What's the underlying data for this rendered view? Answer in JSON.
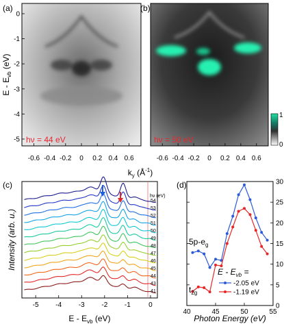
{
  "panels": {
    "a": {
      "letter": "(a)",
      "hv_label": "hν = 44 eV"
    },
    "b": {
      "letter": "(b)",
      "hv_label": "hν = 50 eV"
    },
    "c": {
      "letter": "(c)"
    },
    "d": {
      "letter": "(d)"
    }
  },
  "arpes": {
    "y_axis_label": "E - E",
    "y_axis_sub": "vb",
    "y_axis_unit": " (eV)",
    "x_axis_label": "k",
    "x_axis_sub": "y",
    "x_axis_unit": " (Å",
    "x_axis_unit_sup": "-1",
    "x_axis_unit_end": ")",
    "y_ticks": [
      "0",
      "-1",
      "-2",
      "-3",
      "-4",
      "-5"
    ],
    "x_ticks": [
      "-0.6",
      "-0.4",
      "-0.2",
      "0",
      "0.2",
      "0.4",
      "0.6"
    ],
    "colorbar": {
      "max": "1",
      "min": "0"
    }
  },
  "edc": {
    "y_axis_label": "Intensity (arb. u.)",
    "x_axis_label": "E - E",
    "x_axis_sub": "vb",
    "x_axis_unit": " (eV)",
    "x_ticks": [
      "-5",
      "-4",
      "-3",
      "-2",
      "-1",
      "0"
    ],
    "hv_header": "hν (eV)",
    "curve_labels": [
      "54",
      "53",
      "52",
      "51",
      "50",
      "49",
      "48",
      "47",
      "46",
      "45",
      "44",
      "43",
      "41"
    ],
    "curve_colors": [
      "#1b1b8f",
      "#2136c8",
      "#1f6ee6",
      "#13a3e8",
      "#0fc7d8",
      "#18c9a0",
      "#3fc65b",
      "#93cf2c",
      "#d8cf1c",
      "#f4a51a",
      "#f4661a",
      "#e42626",
      "#8c1a1a"
    ],
    "blue_arrow_color": "#1a5fe0",
    "red_arrow_color": "#e42626"
  },
  "chart_data": {
    "type": "line",
    "title": "",
    "xlabel": "Photon Energy (eV)",
    "ylabel": "",
    "xlim": [
      40,
      55
    ],
    "ylim": [
      0,
      30
    ],
    "x_ticks": [
      "40",
      "45",
      "50",
      "55"
    ],
    "y_ticks": [
      "0",
      "5",
      "10",
      "15",
      "20",
      "25",
      "30"
    ],
    "legend_title": "E - E",
    "legend_title_sub": "vb",
    "legend_title_end": " =",
    "annotation_5p": "5p-e",
    "annotation_5p_sub": "g",
    "annotation_t2g": "t",
    "annotation_t2g_sub": "2g",
    "series": [
      {
        "name": "-2.05 eV",
        "color": "#2b59d9",
        "x": [
          41,
          42,
          43,
          44,
          45,
          46,
          47,
          48,
          49,
          50,
          51,
          52,
          53,
          54
        ],
        "y": [
          12.8,
          13.2,
          12.5,
          9.2,
          11.2,
          10.9,
          17.4,
          21.6,
          26.8,
          29.2,
          25.6,
          21.2,
          17.7,
          15.8
        ]
      },
      {
        "name": "-1.19 eV",
        "color": "#e42626",
        "x": [
          41,
          42,
          43,
          44,
          45,
          46,
          47,
          48,
          49,
          50,
          51,
          52,
          53,
          54
        ],
        "y": [
          3.4,
          4.5,
          4.3,
          3.3,
          9.8,
          9.6,
          15.0,
          19.0,
          22.8,
          23.5,
          22.0,
          18.2,
          14.3,
          12.5
        ]
      }
    ]
  }
}
